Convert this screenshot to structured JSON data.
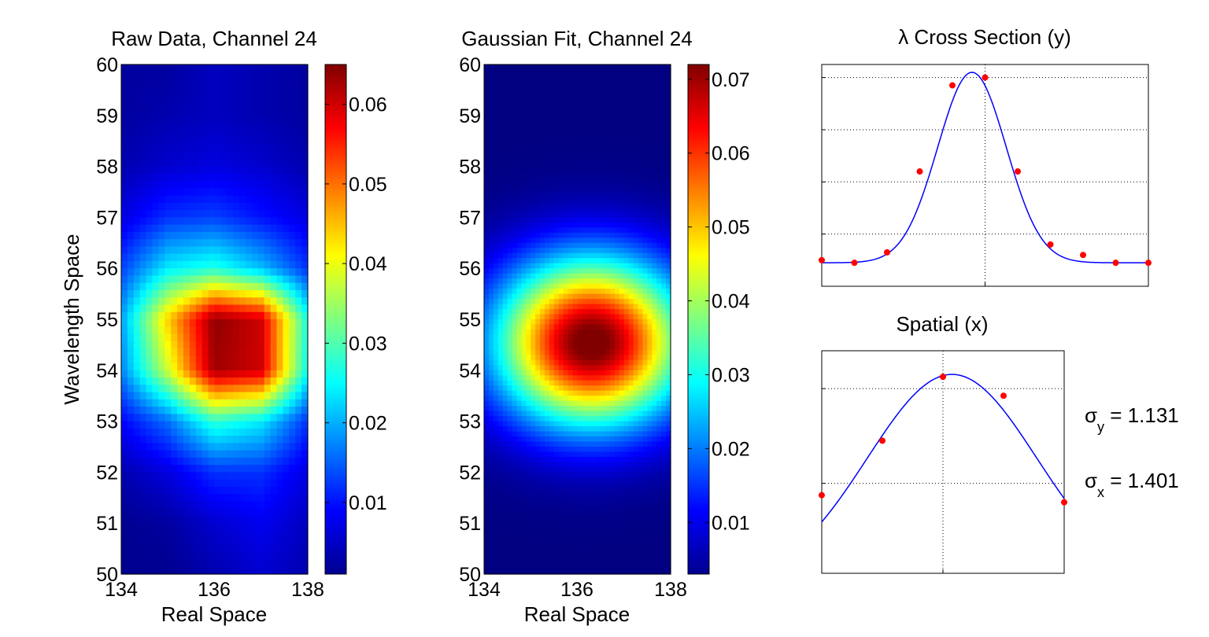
{
  "colors": {
    "fit_line": "#0000ff",
    "data_points": "#ff0000",
    "colormap": "jet"
  },
  "chart_data": [
    {
      "type": "heatmap",
      "title": "Raw Data, Channel 24",
      "xlabel": "Real Space",
      "ylabel": "Wavelength Space",
      "xlim": [
        134,
        138
      ],
      "ylim": [
        50,
        60
      ],
      "xticks": [
        "134",
        "136",
        "138"
      ],
      "yticks": [
        "50",
        "51",
        "52",
        "53",
        "54",
        "55",
        "56",
        "57",
        "58",
        "59",
        "60"
      ],
      "x": [
        134,
        135,
        136,
        137,
        138
      ],
      "y": [
        50,
        51,
        52,
        53,
        54,
        55,
        56,
        57,
        58,
        59,
        60
      ],
      "z": [
        [
          0.002,
          0.002,
          0.004,
          0.006,
          0.004
        ],
        [
          0.002,
          0.003,
          0.006,
          0.008,
          0.005
        ],
        [
          0.004,
          0.007,
          0.012,
          0.012,
          0.007
        ],
        [
          0.009,
          0.016,
          0.028,
          0.024,
          0.012
        ],
        [
          0.017,
          0.038,
          0.063,
          0.06,
          0.025
        ],
        [
          0.019,
          0.044,
          0.064,
          0.06,
          0.026
        ],
        [
          0.013,
          0.024,
          0.027,
          0.021,
          0.012
        ],
        [
          0.007,
          0.012,
          0.013,
          0.01,
          0.007
        ],
        [
          0.004,
          0.006,
          0.007,
          0.006,
          0.004
        ],
        [
          0.003,
          0.004,
          0.005,
          0.004,
          0.003
        ],
        [
          0.003,
          0.003,
          0.005,
          0.004,
          0.003
        ]
      ],
      "colorbar": {
        "min": 0.001,
        "max": 0.065,
        "ticks": [
          0.01,
          0.02,
          0.03,
          0.04,
          0.05,
          0.06
        ],
        "tick_labels": [
          "0.01",
          "0.02",
          "0.03",
          "0.04",
          "0.05",
          "0.06"
        ]
      }
    },
    {
      "type": "heatmap",
      "title": "Gaussian Fit, Channel 24",
      "xlabel": "Real Space",
      "xlim": [
        134,
        138
      ],
      "ylim": [
        50,
        60
      ],
      "xticks": [
        "134",
        "136",
        "138"
      ],
      "yticks": [
        "50",
        "51",
        "52",
        "53",
        "54",
        "55",
        "56",
        "57",
        "58",
        "59",
        "60"
      ],
      "gaussian": {
        "amplitude": 0.071,
        "offset": 0.003,
        "x0": 136.3,
        "y0": 54.55,
        "sigma_x": 1.401,
        "sigma_y": 1.131
      },
      "colorbar": {
        "min": 0.003,
        "max": 0.072,
        "ticks": [
          0.01,
          0.02,
          0.03,
          0.04,
          0.05,
          0.06,
          0.07
        ],
        "tick_labels": [
          "0.01",
          "0.02",
          "0.03",
          "0.04",
          "0.05",
          "0.06",
          "0.07"
        ]
      }
    },
    {
      "type": "line",
      "title": "λ Cross Section (y)",
      "xlim": [
        0,
        10
      ],
      "ylim": [
        -0.1,
        0.75
      ],
      "grid": true,
      "points": {
        "name": "data",
        "x": [
          0,
          1,
          2,
          3,
          4,
          5,
          6,
          7,
          8,
          9,
          10
        ],
        "y": [
          0.0,
          -0.01,
          0.03,
          0.34,
          0.67,
          0.7,
          0.34,
          0.06,
          0.02,
          -0.01,
          -0.01
        ]
      },
      "fit": {
        "name": "fit",
        "center": 4.6,
        "sigma": 1.05,
        "amplitude": 0.73,
        "offset": -0.01
      }
    },
    {
      "type": "line",
      "title": "Spatial (x)",
      "xlim": [
        0,
        4
      ],
      "ylim": [
        -0.18,
        0.76
      ],
      "grid": true,
      "points": {
        "name": "data",
        "x": [
          0,
          1,
          2,
          3,
          4
        ],
        "y": [
          0.15,
          0.38,
          0.65,
          0.57,
          0.12
        ]
      },
      "fit": {
        "name": "fit",
        "center": 2.15,
        "sigma": 1.4,
        "amplitude": 0.9,
        "offset": -0.24
      }
    }
  ],
  "annotations": {
    "sigma_y": {
      "symbol": "σ",
      "subscript": "y",
      "value": " = 1.131"
    },
    "sigma_x": {
      "symbol": "σ",
      "subscript": "x",
      "value": " = 1.401"
    }
  }
}
